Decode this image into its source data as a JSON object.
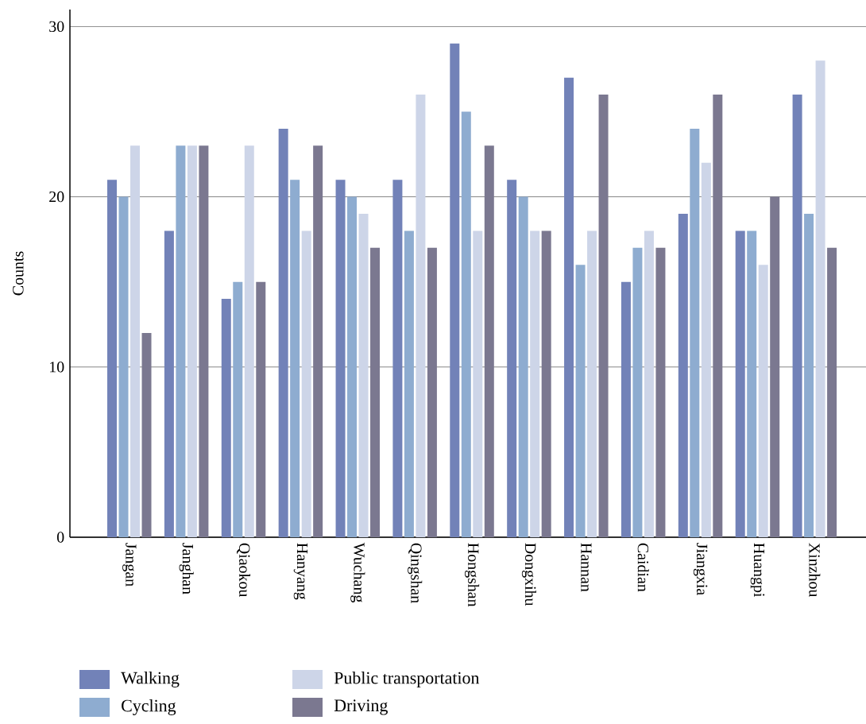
{
  "chart_data": {
    "type": "bar",
    "ylabel": "Counts",
    "categories": [
      "Jangan",
      "Janghan",
      "Qiaokou",
      "Hanyang",
      "Wuchang",
      "Qingshan",
      "Hongshan",
      "Dongxihu",
      "Hannan",
      "Caidian",
      "Jiangxia",
      "Huangpi",
      "Xinzhou"
    ],
    "series": [
      {
        "name": "Walking",
        "color": "#7282b8",
        "values": [
          21,
          18,
          14,
          24,
          21,
          21,
          29,
          21,
          27,
          15,
          19,
          18,
          26
        ]
      },
      {
        "name": "Cycling",
        "color": "#8eacd0",
        "values": [
          20,
          23,
          15,
          21,
          20,
          18,
          25,
          20,
          16,
          17,
          24,
          18,
          19
        ]
      },
      {
        "name": "Public transportation",
        "color": "#cdd5e8",
        "values": [
          23,
          23,
          23,
          18,
          19,
          26,
          18,
          18,
          18,
          18,
          22,
          16,
          28
        ]
      },
      {
        "name": "Driving",
        "color": "#7b7890",
        "values": [
          12,
          23,
          15,
          23,
          17,
          17,
          23,
          18,
          26,
          17,
          26,
          20,
          17
        ]
      }
    ],
    "ylim": [
      0,
      31
    ],
    "yticks": [
      0,
      10,
      20,
      30
    ],
    "grid": "y",
    "legend": "bottom"
  }
}
